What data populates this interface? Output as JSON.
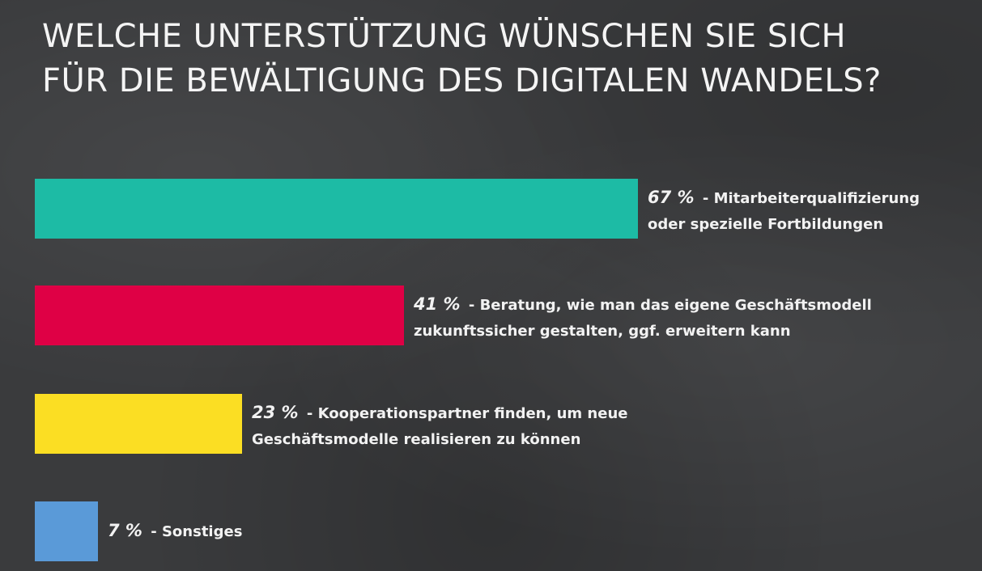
{
  "chart_data": {
    "type": "bar",
    "title_lines": [
      "WELCHE UNTERSTÜTZUNG WÜNSCHEN SIE SICH",
      "FÜR DIE BEWÄLTIGUNG DES DIGITALEN WANDELS?"
    ],
    "xlim": [
      0,
      67
    ],
    "bars": [
      {
        "value": 67,
        "percent_label": "67 %",
        "text_line1": " - Mitarbeiterqualifizierung",
        "text_line2": "oder spezielle Fortbildungen",
        "color": "#1dbba5"
      },
      {
        "value": 41,
        "percent_label": "41 %",
        "text_line1": " - Beratung, wie man das eigene Geschäftsmodell",
        "text_line2": "zukunftssicher gestalten, ggf. erweitern kann",
        "color": "#df0045"
      },
      {
        "value": 23,
        "percent_label": "23 %",
        "text_line1": " - Kooperationspartner finden, um neue",
        "text_line2": "Geschäftsmodelle realisieren zu können",
        "color": "#fbde23"
      },
      {
        "value": 7,
        "percent_label": "7 %",
        "text_line1": " - Sonstiges",
        "text_line2": "",
        "color": "#5a9ad8"
      }
    ]
  }
}
